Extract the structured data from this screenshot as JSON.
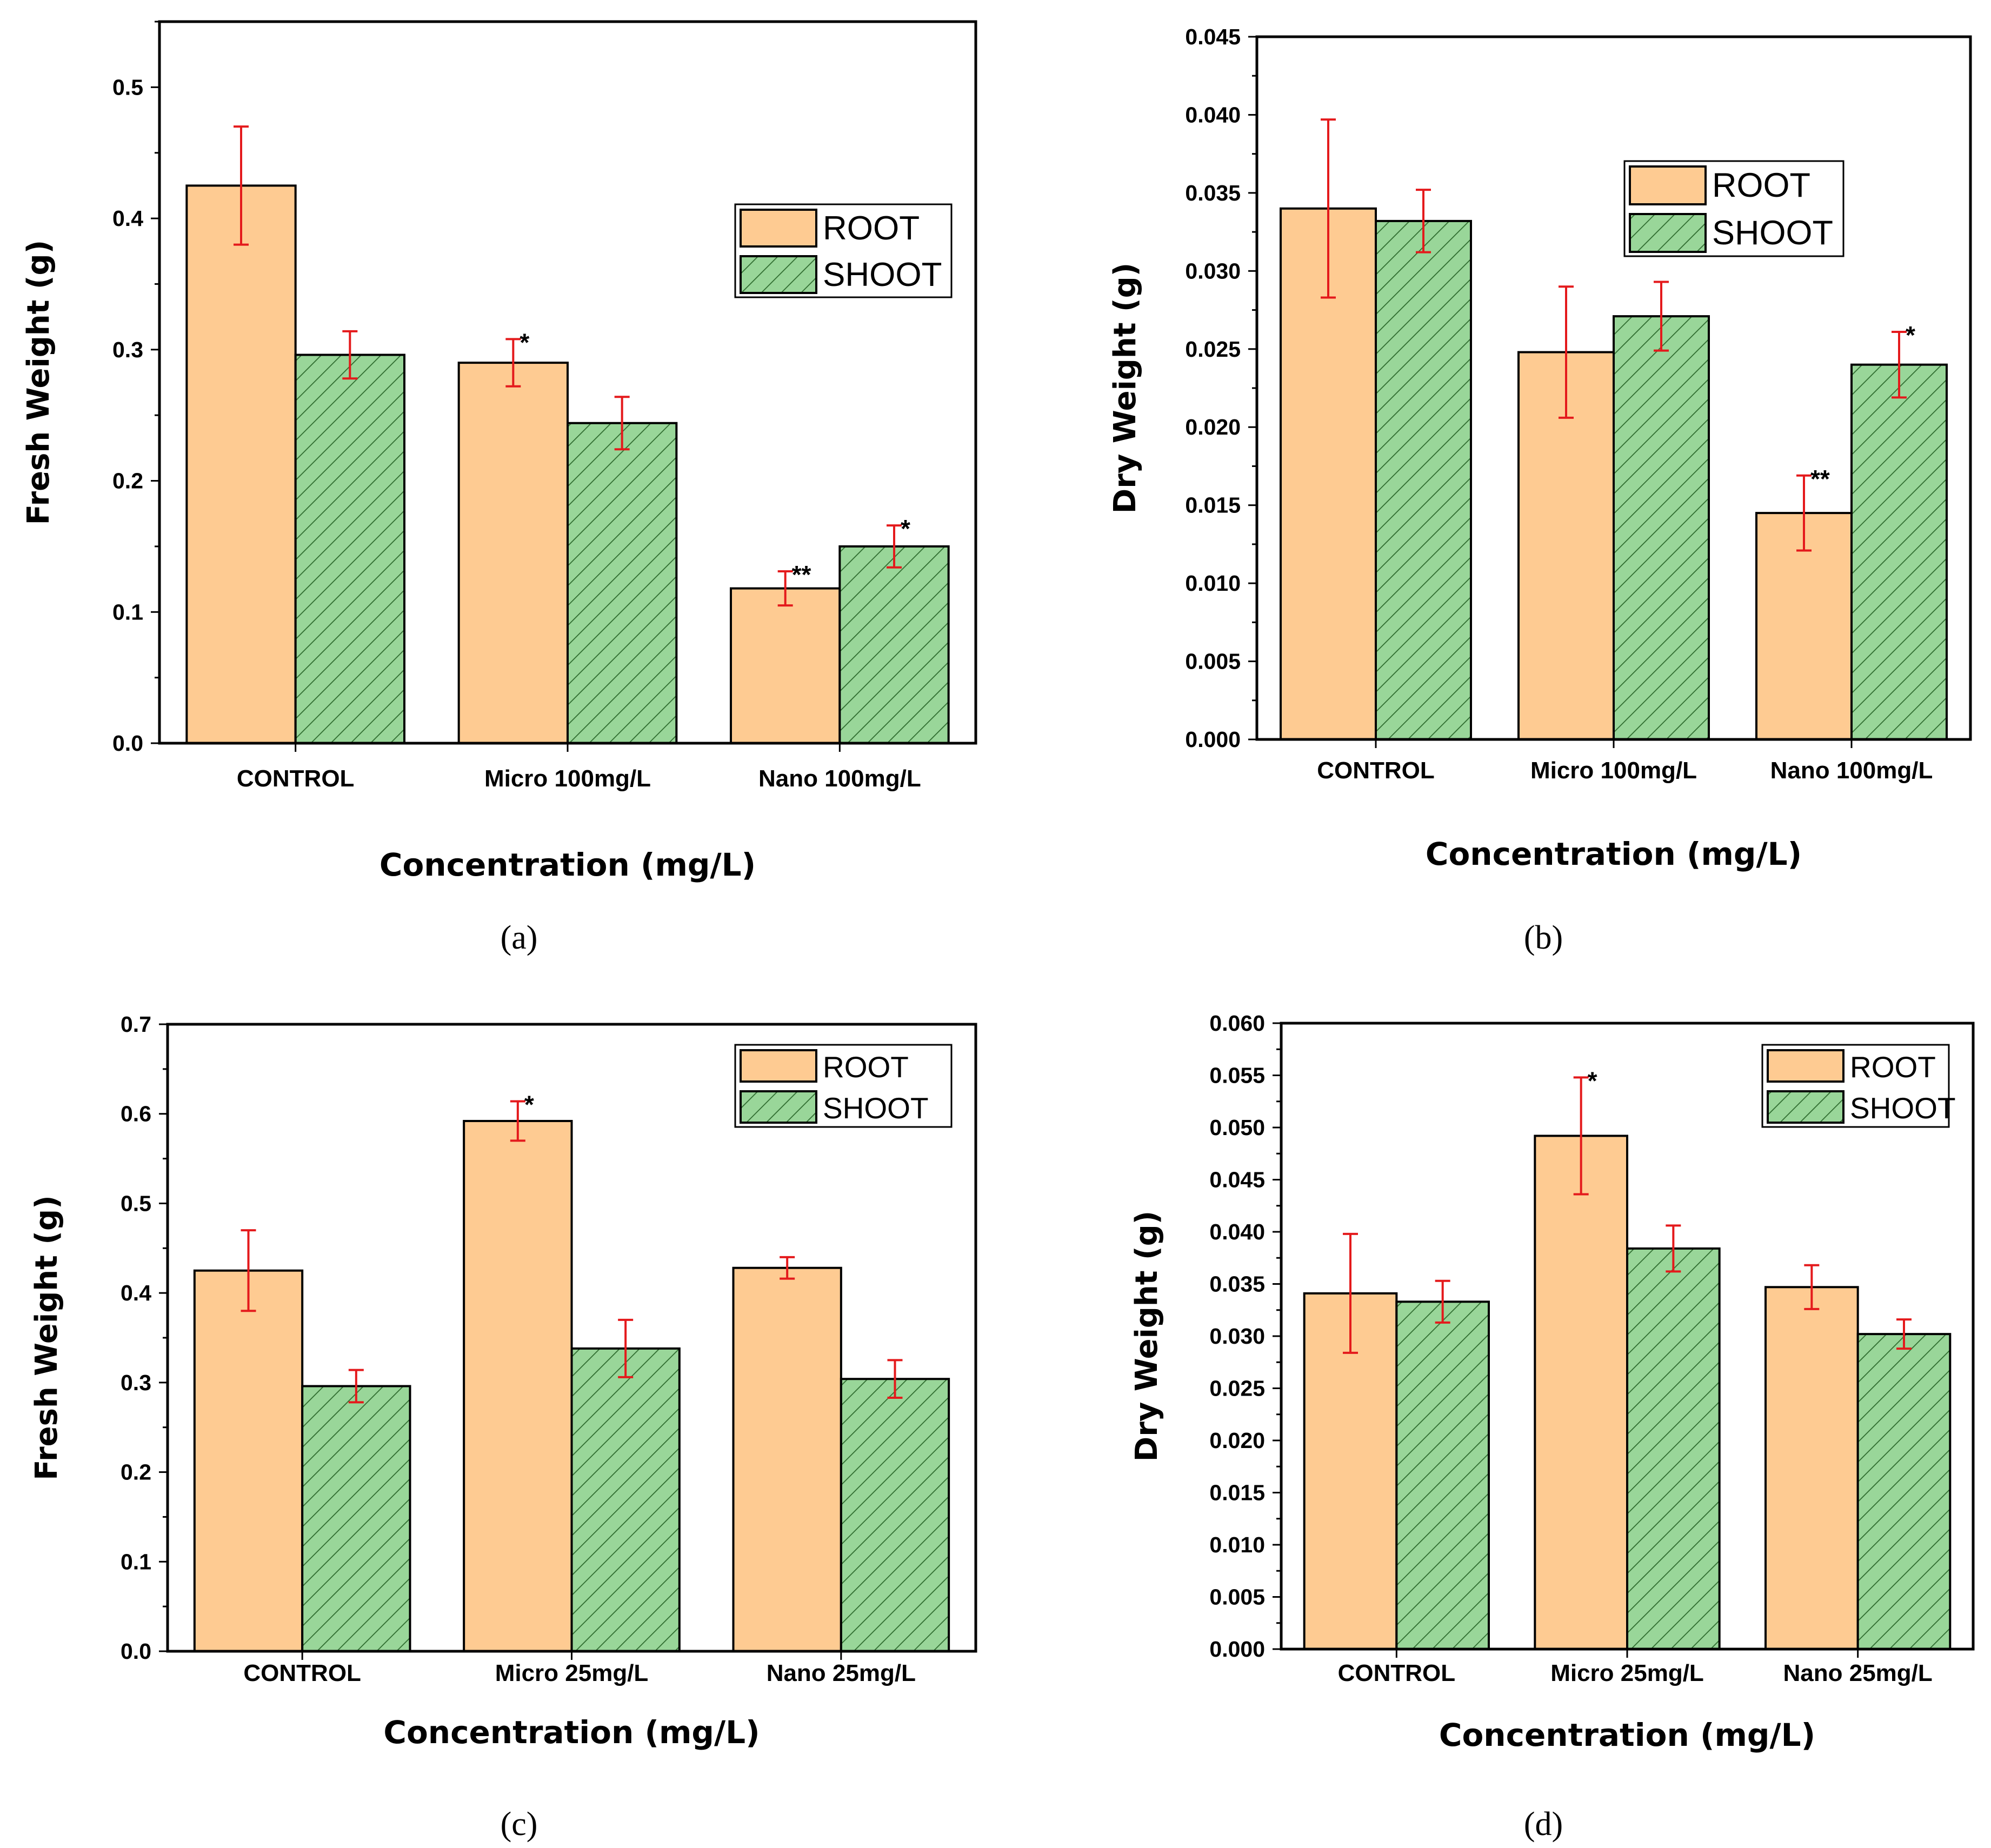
{
  "colors": {
    "root_fill": "#FECB92",
    "shoot_fill": "#99D699",
    "shoot_hatch": "#2E6B2E",
    "error_bar": "#E41A1C",
    "axis": "#000000"
  },
  "chart_data": [
    {
      "panel": "a",
      "caption": "(a)",
      "type": "bar",
      "ylabel": "Fresh Weight (g)",
      "xlabel": "Concentration (mg/L)",
      "ylim": [
        0,
        0.55
      ],
      "yticks": [
        "0.0",
        "0.1",
        "0.2",
        "0.3",
        "0.4",
        "0.5"
      ],
      "categories": [
        "CONTROL",
        "Micro 100mg/L",
        "Nano 100mg/L"
      ],
      "legend": {
        "position": "upper-right",
        "labels": [
          "ROOT",
          "SHOOT"
        ]
      },
      "series": [
        {
          "name": "ROOT",
          "values": [
            0.425,
            0.29,
            0.118
          ],
          "errors": [
            0.045,
            0.018,
            0.013
          ],
          "stars": [
            "",
            "*",
            "**"
          ]
        },
        {
          "name": "SHOOT",
          "values": [
            0.296,
            0.244,
            0.15
          ],
          "errors": [
            0.018,
            0.02,
            0.016
          ],
          "stars": [
            "",
            "",
            "*"
          ]
        }
      ]
    },
    {
      "panel": "b",
      "caption": "(b)",
      "type": "bar",
      "ylabel": "Dry Weight (g)",
      "xlabel": "Concentration (mg/L)",
      "ylim": [
        0,
        0.045
      ],
      "yticks": [
        "0.000",
        "0.005",
        "0.010",
        "0.015",
        "0.020",
        "0.025",
        "0.030",
        "0.035",
        "0.040",
        "0.045"
      ],
      "categories": [
        "CONTROL",
        "Micro 100mg/L",
        "Nano 100mg/L"
      ],
      "legend": {
        "position": "upper-right",
        "labels": [
          "ROOT",
          "SHOOT"
        ]
      },
      "series": [
        {
          "name": "ROOT",
          "values": [
            0.034,
            0.0248,
            0.0145
          ],
          "errors": [
            0.0057,
            0.0042,
            0.0024
          ],
          "stars": [
            "",
            "",
            "**"
          ]
        },
        {
          "name": "SHOOT",
          "values": [
            0.0332,
            0.0271,
            0.024
          ],
          "errors": [
            0.002,
            0.0022,
            0.0021
          ],
          "stars": [
            "",
            "",
            "*"
          ]
        }
      ]
    },
    {
      "panel": "c",
      "caption": "(c)",
      "type": "bar",
      "ylabel": "Fresh Weight (g)",
      "xlabel": "Concentration (mg/L)",
      "ylim": [
        0,
        0.7
      ],
      "yticks": [
        "0.0",
        "0.1",
        "0.2",
        "0.3",
        "0.4",
        "0.5",
        "0.6",
        "0.7"
      ],
      "categories": [
        "CONTROL",
        "Micro 25mg/L",
        "Nano 25mg/L"
      ],
      "legend": {
        "position": "upper-right",
        "labels": [
          "ROOT",
          "SHOOT"
        ]
      },
      "series": [
        {
          "name": "ROOT",
          "values": [
            0.425,
            0.592,
            0.428
          ],
          "errors": [
            0.045,
            0.022,
            0.012
          ],
          "stars": [
            "",
            "*",
            ""
          ]
        },
        {
          "name": "SHOOT",
          "values": [
            0.296,
            0.338,
            0.304
          ],
          "errors": [
            0.018,
            0.032,
            0.021
          ],
          "stars": [
            "",
            "",
            ""
          ]
        }
      ]
    },
    {
      "panel": "d",
      "caption": "(d)",
      "type": "bar",
      "ylabel": "Dry Weight (g)",
      "xlabel": "Concentration (mg/L)",
      "ylim": [
        0,
        0.06
      ],
      "yticks": [
        "0.000",
        "0.005",
        "0.010",
        "0.015",
        "0.020",
        "0.025",
        "0.030",
        "0.035",
        "0.040",
        "0.045",
        "0.050",
        "0.055",
        "0.060"
      ],
      "categories": [
        "CONTROL",
        "Micro 25mg/L",
        "Nano 25mg/L"
      ],
      "legend": {
        "position": "upper-right",
        "labels": [
          "ROOT",
          "SHOOT"
        ]
      },
      "series": [
        {
          "name": "ROOT",
          "values": [
            0.0341,
            0.0492,
            0.0347
          ],
          "errors": [
            0.0057,
            0.0056,
            0.0021
          ],
          "stars": [
            "",
            "*",
            ""
          ]
        },
        {
          "name": "SHOOT",
          "values": [
            0.0333,
            0.0384,
            0.0302
          ],
          "errors": [
            0.002,
            0.0022,
            0.0014
          ],
          "stars": [
            "",
            "",
            ""
          ]
        }
      ]
    }
  ]
}
